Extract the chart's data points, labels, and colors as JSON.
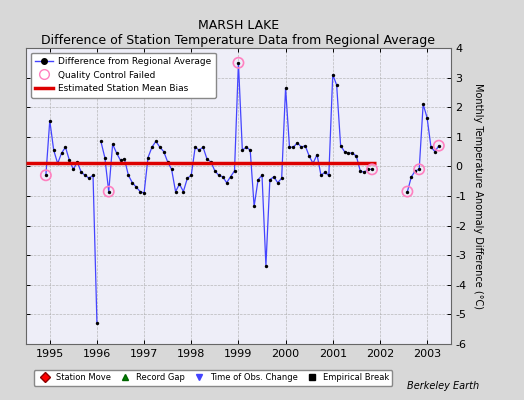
{
  "title": "MARSH LAKE",
  "subtitle": "Difference of Station Temperature Data from Regional Average",
  "ylabel": "Monthly Temperature Anomaly Difference (°C)",
  "credit": "Berkeley Earth",
  "bias_value": 0.1,
  "ylim": [
    -6,
    4
  ],
  "xlim": [
    1994.5,
    2003.5
  ],
  "xticks": [
    1995,
    1996,
    1997,
    1998,
    1999,
    2000,
    2001,
    2002,
    2003
  ],
  "yticks": [
    -6,
    -5,
    -4,
    -3,
    -2,
    -1,
    0,
    1,
    2,
    3,
    4
  ],
  "line_color": "#4444ff",
  "dot_color": "#000000",
  "bias_color": "#dd0000",
  "qc_color": "#ff80c0",
  "bg_color": "#d8d8d8",
  "plot_bg_color": "#eeeef8",
  "segment1_times": [
    1994.917,
    1995.0,
    1995.083,
    1995.167,
    1995.25,
    1995.333,
    1995.417,
    1995.5,
    1995.583,
    1995.667,
    1995.75,
    1995.833,
    1995.917,
    1996.0
  ],
  "segment1_values": [
    -0.3,
    1.55,
    0.55,
    0.1,
    0.45,
    0.65,
    0.2,
    -0.1,
    0.15,
    -0.2,
    -0.3,
    -0.4,
    -0.3,
    -5.3
  ],
  "segment2_times": [
    1996.083,
    1996.167,
    1996.25,
    1996.333,
    1996.417,
    1996.5,
    1996.583,
    1996.667,
    1996.75,
    1996.833,
    1996.917,
    1997.0,
    1997.083,
    1997.167,
    1997.25,
    1997.333,
    1997.417,
    1997.5,
    1997.583,
    1997.667,
    1997.75,
    1997.833,
    1997.917,
    1998.0,
    1998.083,
    1998.167,
    1998.25,
    1998.333,
    1998.417,
    1998.5,
    1998.583,
    1998.667,
    1998.75,
    1998.833,
    1998.917,
    1999.0,
    1999.083,
    1999.167,
    1999.25,
    1999.333,
    1999.417,
    1999.5,
    1999.583,
    1999.667,
    1999.75,
    1999.833,
    1999.917,
    2000.0,
    2000.083,
    2000.167,
    2000.25,
    2000.333,
    2000.417,
    2000.5,
    2000.583,
    2000.667,
    2000.75,
    2000.833,
    2000.917,
    2001.0,
    2001.083,
    2001.167,
    2001.25,
    2001.333,
    2001.417,
    2001.5,
    2001.583,
    2001.667,
    2001.75,
    2001.833
  ],
  "segment2_values": [
    0.85,
    0.3,
    -0.85,
    0.75,
    0.45,
    0.2,
    0.25,
    -0.3,
    -0.55,
    -0.7,
    -0.85,
    -0.9,
    0.3,
    0.65,
    0.85,
    0.65,
    0.5,
    0.15,
    -0.1,
    -0.85,
    -0.6,
    -0.85,
    -0.4,
    -0.3,
    0.65,
    0.55,
    0.65,
    0.25,
    0.15,
    -0.15,
    -0.3,
    -0.35,
    -0.55,
    -0.35,
    -0.15,
    3.5,
    0.55,
    0.65,
    0.55,
    -1.35,
    -0.45,
    -0.3,
    -3.35,
    -0.45,
    -0.35,
    -0.55,
    -0.4,
    2.65,
    0.65,
    0.65,
    0.8,
    0.65,
    0.7,
    0.35,
    0.1,
    0.4,
    -0.3,
    -0.2,
    -0.3,
    3.1,
    2.75,
    0.7,
    0.5,
    0.45,
    0.45,
    0.35,
    -0.15,
    -0.2,
    -0.1,
    -0.1
  ],
  "segment3_times": [
    2002.583,
    2002.667,
    2002.75,
    2002.833,
    2002.917,
    2003.0,
    2003.083,
    2003.167,
    2003.25
  ],
  "segment3_values": [
    -0.85,
    -0.35,
    -0.15,
    -0.1,
    2.1,
    1.65,
    0.65,
    0.5,
    0.7
  ],
  "qc_failed_times": [
    1994.917,
    1996.25,
    1999.0,
    2001.833,
    2002.583,
    2002.833,
    2003.25
  ],
  "qc_failed_values": [
    -0.3,
    -0.85,
    3.5,
    -0.1,
    -0.85,
    -0.1,
    0.7
  ],
  "bias_x_start": 1994.5,
  "bias_x_end": 2001.917
}
